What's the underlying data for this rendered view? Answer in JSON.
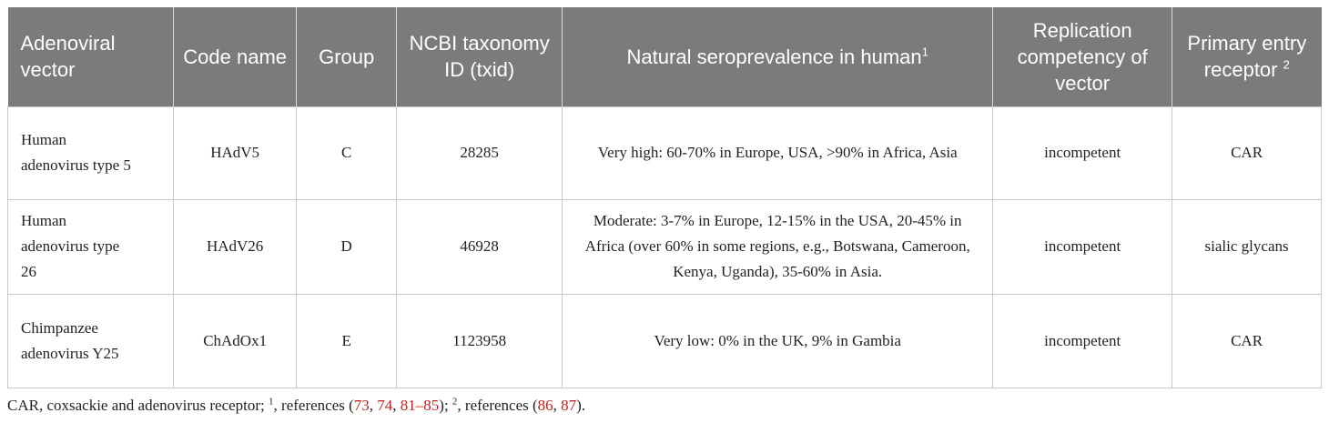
{
  "table": {
    "headers": {
      "vector": "Adenoviral vector",
      "code": "Code name",
      "group": "Group",
      "taxid": "NCBI taxonomy ID (txid)",
      "sero": "Natural seroprevalence in human",
      "sero_sup": "1",
      "replication": "Replication competency of vector",
      "receptor": "Primary entry receptor",
      "receptor_sup": "2"
    },
    "rows": [
      {
        "vector": "Human adenovirus type 5",
        "code": "HAdV5",
        "group": "C",
        "taxid": "28285",
        "sero": "Very high: 60-70% in Europe, USA, >90% in Africa, Asia",
        "replication": "incompetent",
        "receptor": "CAR"
      },
      {
        "vector": "Human adenovirus type 26",
        "code": "HAdV26",
        "group": "D",
        "taxid": "46928",
        "sero": "Moderate: 3-7% in Europe, 12-15% in the USA, 20-45% in Africa (over 60% in some regions, e.g., Botswana, Cameroon, Kenya, Uganda), 35-60% in Asia.",
        "replication": "incompetent",
        "receptor": "sialic glycans"
      },
      {
        "vector": "Chimpanzee adenovirus Y25",
        "code": "ChAdOx1",
        "group": "E",
        "taxid": "1123958",
        "sero": "Very low: 0% in the UK, 9% in Gambia",
        "replication": "incompetent",
        "receptor": "CAR"
      }
    ]
  },
  "footnote": {
    "t1": "CAR, coxsackie and adenovirus receptor; ",
    "sup1": "1",
    "t2": ", references (",
    "r73": "73",
    "sep1": ", ",
    "r74": "74",
    "sep2": ", ",
    "r81_85": "81–85",
    "t3": "); ",
    "sup2": "2",
    "t4": ", references (",
    "r86": "86",
    "sep3": ", ",
    "r87": "87",
    "t5": ")."
  },
  "colors": {
    "header_bg": "#7b7b7b",
    "header_text": "#ffffff",
    "reference_link": "#c41e1e",
    "grid": "#c8c8c8"
  }
}
